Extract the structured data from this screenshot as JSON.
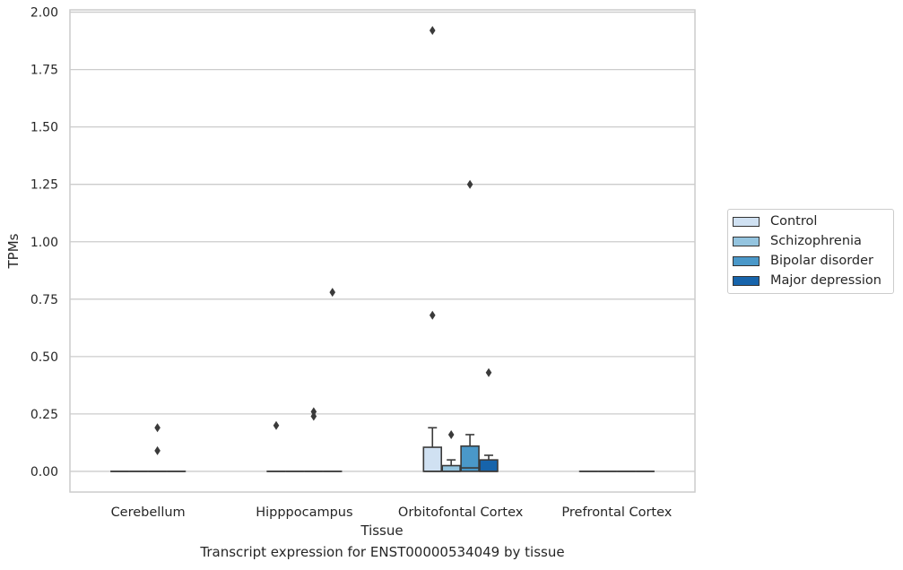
{
  "chart_data": {
    "type": "box",
    "title": "",
    "caption": "Transcript expression for ENST00000534049 by tissue",
    "xlabel": "Tissue",
    "ylabel": "TPMs",
    "ylim": [
      -0.09,
      2.01
    ],
    "yticks": [
      "0.00",
      "0.25",
      "0.50",
      "0.75",
      "1.00",
      "1.25",
      "1.50",
      "1.75",
      "2.00"
    ],
    "ytick_values": [
      0,
      0.25,
      0.5,
      0.75,
      1.0,
      1.25,
      1.5,
      1.75,
      2.0
    ],
    "grid": true,
    "legend_placement": "right",
    "categories": [
      "Cerebellum",
      "Hipppocampus",
      "Orbitofontal Cortex",
      "Prefrontal Cortex"
    ],
    "series": [
      {
        "name": "Control",
        "color": "#d0e1f2",
        "boxes": [
          {
            "q1": 0,
            "median": 0,
            "q3": 0,
            "whisker_low": 0,
            "whisker_high": 0,
            "outliers": []
          },
          {
            "q1": 0,
            "median": 0,
            "q3": 0,
            "whisker_low": 0,
            "whisker_high": 0,
            "outliers": [
              0.2
            ]
          },
          {
            "q1": 0,
            "median": 0,
            "q3": 0.105,
            "whisker_low": 0,
            "whisker_high": 0.19,
            "outliers": [
              0.68,
              1.92
            ]
          },
          {
            "q1": 0,
            "median": 0,
            "q3": 0,
            "whisker_low": 0,
            "whisker_high": 0,
            "outliers": []
          }
        ]
      },
      {
        "name": "Schizophrenia",
        "color": "#94c4df",
        "boxes": [
          {
            "q1": 0,
            "median": 0,
            "q3": 0,
            "whisker_low": 0,
            "whisker_high": 0,
            "outliers": []
          },
          {
            "q1": 0,
            "median": 0,
            "q3": 0,
            "whisker_low": 0,
            "whisker_high": 0,
            "outliers": []
          },
          {
            "q1": 0,
            "median": 0,
            "q3": 0.025,
            "whisker_low": 0,
            "whisker_high": 0.05,
            "outliers": [
              0.16
            ]
          },
          {
            "q1": 0,
            "median": 0,
            "q3": 0,
            "whisker_low": 0,
            "whisker_high": 0,
            "outliers": []
          }
        ]
      },
      {
        "name": "Bipolar disorder",
        "color": "#4a98c9",
        "boxes": [
          {
            "q1": 0,
            "median": 0,
            "q3": 0,
            "whisker_low": 0,
            "whisker_high": 0,
            "outliers": [
              0.09,
              0.19
            ]
          },
          {
            "q1": 0,
            "median": 0,
            "q3": 0,
            "whisker_low": 0,
            "whisker_high": 0,
            "outliers": [
              0.24,
              0.26
            ]
          },
          {
            "q1": 0,
            "median": 0.015,
            "q3": 0.11,
            "whisker_low": 0,
            "whisker_high": 0.16,
            "outliers": [
              1.25
            ]
          },
          {
            "q1": 0,
            "median": 0,
            "q3": 0,
            "whisker_low": 0,
            "whisker_high": 0,
            "outliers": []
          }
        ]
      },
      {
        "name": "Major depression",
        "color": "#1764ab",
        "boxes": [
          {
            "q1": 0,
            "median": 0,
            "q3": 0,
            "whisker_low": 0,
            "whisker_high": 0,
            "outliers": []
          },
          {
            "q1": 0,
            "median": 0,
            "q3": 0,
            "whisker_low": 0,
            "whisker_high": 0,
            "outliers": [
              0.78
            ]
          },
          {
            "q1": 0,
            "median": 0,
            "q3": 0.05,
            "whisker_low": 0,
            "whisker_high": 0.07,
            "outliers": [
              0.43
            ]
          },
          {
            "q1": 0,
            "median": 0,
            "q3": 0,
            "whisker_low": 0,
            "whisker_high": 0,
            "outliers": []
          }
        ]
      }
    ]
  }
}
